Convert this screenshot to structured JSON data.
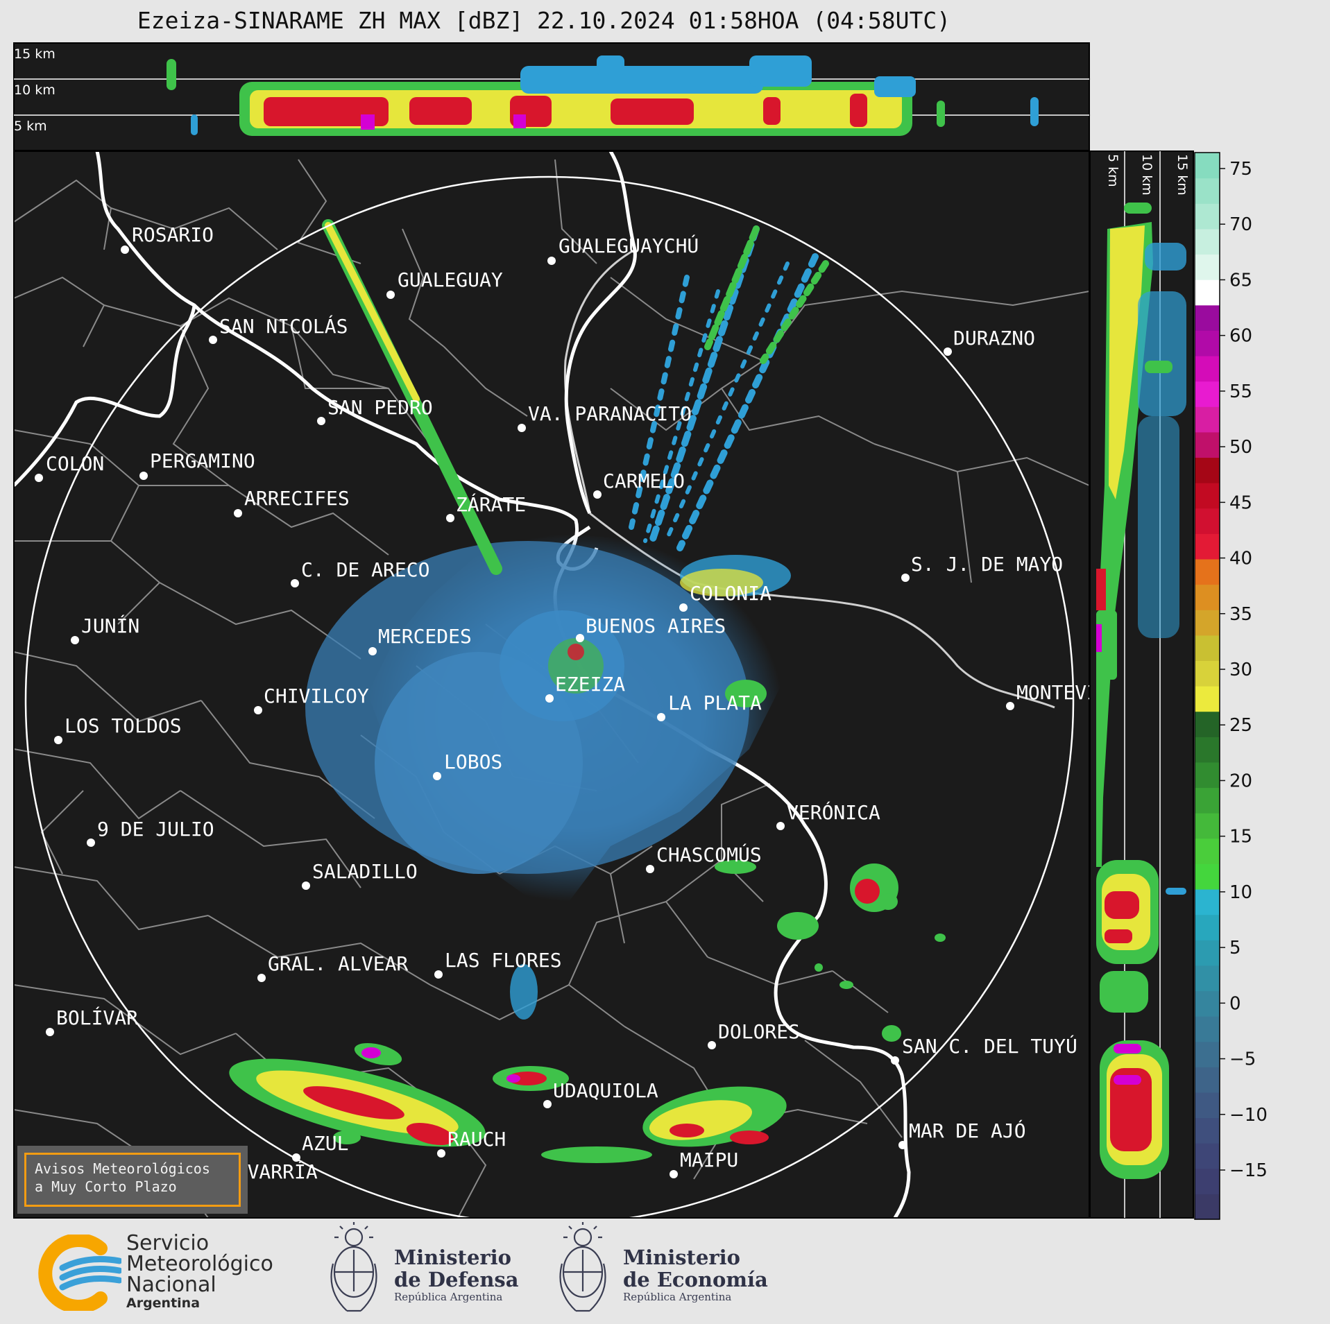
{
  "title": "Ezeiza-SINARAME ZH MAX [dBZ] 22.10.2024 01:58HOA (04:58UTC)",
  "top_profile": {
    "height_labels": [
      "15 km",
      "10 km",
      "5 km"
    ]
  },
  "side_profile": {
    "height_labels": [
      "5 km",
      "10 km",
      "15 km"
    ]
  },
  "colorbar": {
    "ticks": [
      "75",
      "70",
      "65",
      "60",
      "55",
      "50",
      "45",
      "40",
      "35",
      "30",
      "25",
      "20",
      "15",
      "10",
      "5",
      "0",
      "−5",
      "−10",
      "−15"
    ]
  },
  "cities": [
    {
      "name": "ROSARIO"
    },
    {
      "name": "GUALEGUAYCHÚ"
    },
    {
      "name": "GUALEGUAY"
    },
    {
      "name": "SAN NICOLÁS"
    },
    {
      "name": "DURAZNO"
    },
    {
      "name": "SAN PEDRO"
    },
    {
      "name": "VA. PARANACITO"
    },
    {
      "name": "COLON"
    },
    {
      "name": "PERGAMINO"
    },
    {
      "name": "CARMELO"
    },
    {
      "name": "ARRECIFES"
    },
    {
      "name": "ZÁRATE"
    },
    {
      "name": "C. DE ARECO"
    },
    {
      "name": "S. J. DE MAYO"
    },
    {
      "name": "COLONIA"
    },
    {
      "name": "JUNÍN"
    },
    {
      "name": "BUENOS AIRES"
    },
    {
      "name": "MERCEDES"
    },
    {
      "name": "EZEIZA"
    },
    {
      "name": "MONTEVIDEO"
    },
    {
      "name": "CHIVILCOY"
    },
    {
      "name": "LA PLATA"
    },
    {
      "name": "LOS TOLDOS"
    },
    {
      "name": "LOBOS"
    },
    {
      "name": "VERÓNICA"
    },
    {
      "name": "9 DE JULIO"
    },
    {
      "name": "CHASCOMÚS"
    },
    {
      "name": "SALADILLO"
    },
    {
      "name": "GRAL. ALVEAR"
    },
    {
      "name": "LAS FLORES"
    },
    {
      "name": "BOLÍVAR"
    },
    {
      "name": "DOLORES"
    },
    {
      "name": "SAN C. DEL TUYÚ"
    },
    {
      "name": "UDAQUIOLA"
    },
    {
      "name": "RAUCH"
    },
    {
      "name": "AZUL"
    },
    {
      "name": "MAR DE AJÓ"
    },
    {
      "name": "OLAVARRÍA"
    },
    {
      "name": "MAIPU"
    }
  ],
  "alert": {
    "line1": "Avisos Meteorológicos",
    "line2": "a Muy Corto Plazo"
  },
  "footer": {
    "smn": {
      "line1": "Servicio",
      "line2": "Meteorológico",
      "line3": "Nacional",
      "line4": "Argentina"
    },
    "defensa": {
      "line1": "Ministerio",
      "line2": "de Defensa",
      "line3": "República Argentina"
    },
    "economia": {
      "line1": "Ministerio",
      "line2": "de Economía",
      "line3": "República Argentina"
    }
  },
  "colors": {
    "background": "#e6e6e6",
    "map_bg": "#1b1b1b",
    "coast": "#ffffff",
    "border": "#8a8a8a",
    "accent_orange": "#f39c12",
    "smn_blue": "#3aa0d8",
    "smn_orange": "#f7a600"
  }
}
